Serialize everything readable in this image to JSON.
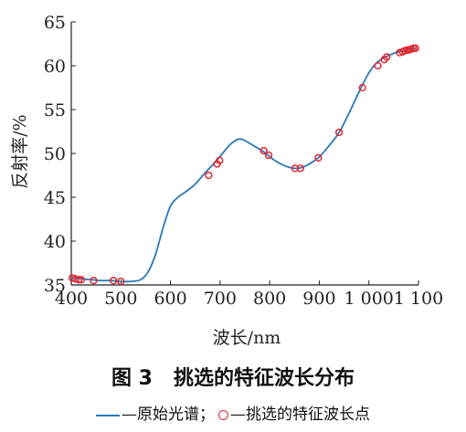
{
  "caption": {
    "number": "图 3",
    "text": "挑选的特征波长分布"
  },
  "legend": {
    "line_label": "—原始光谱；",
    "marker_label": "—挑选的特征波长点"
  },
  "colors": {
    "spectrum_line": "#2a78b7",
    "selected_marker": "#e0262f",
    "axis": "#222222"
  },
  "chart_data": {
    "type": "line",
    "xlabel": "波长/nm",
    "ylabel": "反射率/%",
    "xlim": [
      400,
      1100
    ],
    "ylim": [
      35,
      65
    ],
    "x_ticks": [
      400,
      500,
      600,
      700,
      800,
      900,
      1000,
      1100
    ],
    "x_tick_labels": [
      "400",
      "500",
      "600",
      "700",
      "800",
      "900",
      "1 000",
      "1 100"
    ],
    "y_ticks": [
      35,
      40,
      45,
      50,
      55,
      60,
      65
    ],
    "y_tick_labels": [
      "35",
      "40",
      "45",
      "50",
      "55",
      "60",
      "65"
    ],
    "grid": false,
    "legend_position": "bottom",
    "series": [
      {
        "name": "原始光谱",
        "style": "line",
        "x": [
          400,
          420,
          440,
          460,
          480,
          500,
          520,
          540,
          555,
          570,
          585,
          600,
          615,
          630,
          650,
          670,
          690,
          705,
          720,
          735,
          745,
          755,
          770,
          790,
          810,
          830,
          850,
          865,
          880,
          900,
          920,
          940,
          960,
          980,
          1000,
          1015,
          1030,
          1045,
          1060,
          1075,
          1090,
          1095
        ],
        "values": [
          35.8,
          35.7,
          35.6,
          35.5,
          35.5,
          35.4,
          35.4,
          35.6,
          36.5,
          38.5,
          41.5,
          44.0,
          45.0,
          45.6,
          46.5,
          47.8,
          49.0,
          50.0,
          51.0,
          51.6,
          51.6,
          51.3,
          50.8,
          50.1,
          49.2,
          48.6,
          48.3,
          48.4,
          48.8,
          49.6,
          50.9,
          52.4,
          54.6,
          57.0,
          59.2,
          60.3,
          60.9,
          61.3,
          61.6,
          61.8,
          62.0,
          62.0
        ]
      },
      {
        "name": "挑选的特征波长点",
        "style": "markers",
        "x": [
          402,
          408,
          415,
          420,
          445,
          485,
          500,
          677,
          694,
          699,
          788,
          798,
          851,
          862,
          898,
          940,
          987,
          1018,
          1031,
          1036,
          1062,
          1068,
          1072,
          1077,
          1081,
          1085,
          1090,
          1094
        ],
        "values": [
          35.8,
          35.7,
          35.6,
          35.6,
          35.5,
          35.5,
          35.4,
          47.5,
          48.8,
          49.2,
          50.3,
          49.8,
          48.3,
          48.3,
          49.5,
          52.4,
          57.5,
          60.0,
          60.7,
          61.0,
          61.5,
          61.6,
          61.7,
          61.8,
          61.8,
          61.9,
          62.0,
          62.0
        ]
      }
    ]
  }
}
